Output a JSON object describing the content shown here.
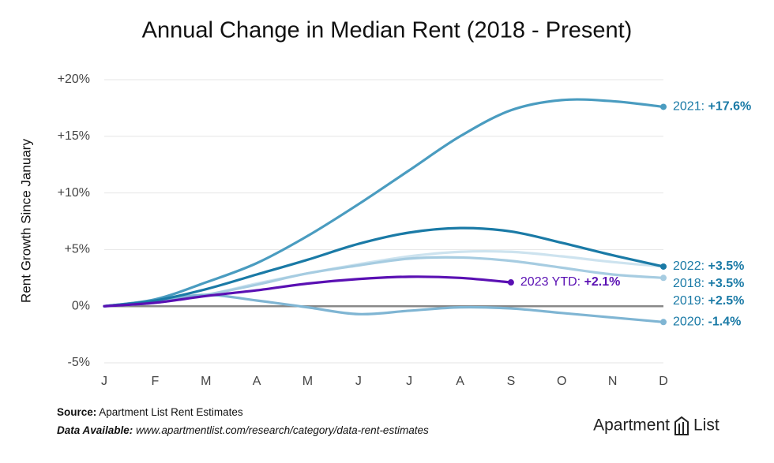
{
  "chart_data": {
    "type": "line",
    "title": "Annual Change in Median Rent (2018 - Present)",
    "y_label": "Rent Growth Since January",
    "categories": [
      "J",
      "F",
      "M",
      "A",
      "M",
      "J",
      "J",
      "A",
      "S",
      "O",
      "N",
      "D"
    ],
    "ylim": [
      -5,
      20
    ],
    "yticks": [
      {
        "value": -5,
        "label": "-5%"
      },
      {
        "value": 0,
        "label": "0%"
      },
      {
        "value": 5,
        "label": "+5%"
      },
      {
        "value": 10,
        "label": "+10%"
      },
      {
        "value": 15,
        "label": "+15%"
      },
      {
        "value": 20,
        "label": "+20%"
      }
    ],
    "grid": true,
    "series": [
      {
        "name": "2022:",
        "color": "#cde3ef",
        "values": [
          0,
          0.4,
          1.0,
          2.0,
          2.9,
          3.7,
          4.4,
          4.8,
          4.8,
          4.4,
          3.9,
          3.5
        ],
        "value_labels": [
          null,
          null,
          null,
          null,
          null,
          null,
          null,
          null,
          null,
          null,
          null,
          "+3.5%"
        ]
      },
      {
        "name": "2019:",
        "color": "#a6cce1",
        "values": [
          0,
          0.3,
          1.0,
          1.9,
          2.9,
          3.6,
          4.2,
          4.3,
          4.0,
          3.4,
          2.8,
          2.5
        ],
        "value_labels": [
          null,
          null,
          null,
          null,
          null,
          null,
          null,
          null,
          null,
          null,
          null,
          "+2.5%"
        ]
      },
      {
        "name": "2020:",
        "color": "#7fb5d3",
        "values": [
          0,
          0.5,
          1.0,
          0.5,
          -0.1,
          -0.7,
          -0.4,
          -0.1,
          -0.2,
          -0.6,
          -1.0,
          -1.4
        ],
        "value_labels": [
          null,
          null,
          null,
          null,
          null,
          null,
          null,
          null,
          null,
          null,
          null,
          "-1.4%"
        ]
      },
      {
        "name": "2021:",
        "color": "#4a9cc0",
        "values": [
          0,
          0.6,
          2.1,
          3.8,
          6.2,
          9.0,
          12.0,
          15.0,
          17.3,
          18.2,
          18.1,
          17.6
        ],
        "value_labels": [
          null,
          null,
          null,
          null,
          null,
          null,
          null,
          null,
          null,
          null,
          null,
          "+17.6%"
        ]
      },
      {
        "name": "2018:",
        "color": "#1a7aa6",
        "values": [
          0,
          0.5,
          1.5,
          2.8,
          4.1,
          5.5,
          6.5,
          6.9,
          6.6,
          5.6,
          4.5,
          3.5
        ],
        "value_labels": [
          null,
          null,
          null,
          null,
          null,
          null,
          null,
          null,
          null,
          null,
          null,
          "+3.5%"
        ]
      },
      {
        "name": "2023 YTD:",
        "color": "#5a10b3",
        "values": [
          0,
          0.3,
          0.9,
          1.4,
          2.0,
          2.4,
          2.6,
          2.5,
          2.1,
          null,
          null,
          null
        ],
        "value_labels": [
          null,
          null,
          null,
          null,
          null,
          null,
          null,
          null,
          "+2.1%",
          null,
          null,
          null
        ]
      }
    ],
    "source_label": "Source:",
    "source": "Apartment List Rent Estimates",
    "data_label": "Data Available:",
    "data_url": "www.apartmentlist.com/research/category/data-rent-estimates",
    "logo_left": "Apartment",
    "logo_right": "List"
  }
}
